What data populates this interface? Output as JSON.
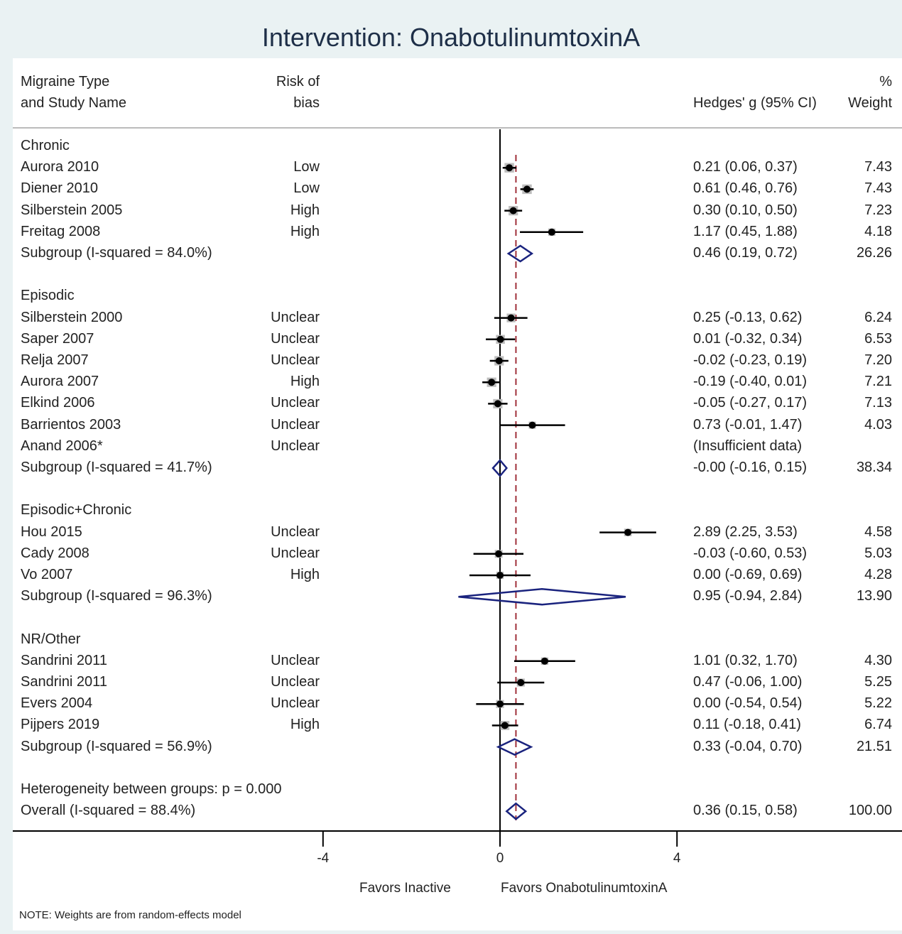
{
  "title": "Intervention: OnabotulinumtoxinA",
  "headers": {
    "study_line1": "Migraine Type",
    "study_line2": "and Study Name",
    "bias_line1": "Risk of",
    "bias_line2": "bias",
    "ci": "Hedges' g (95% CI)",
    "weight_line1": "%",
    "weight_line2": "Weight"
  },
  "axis": {
    "ticks": [
      -4,
      0,
      4
    ],
    "tick_labels": [
      "-4",
      "0",
      "4"
    ],
    "xlim": [
      -11.03,
      9.0
    ]
  },
  "favors_left": "Favors Inactive",
  "favors_right": "Favors OnabotulinumtoxinA",
  "note": "NOTE: Weights are from random-effects model",
  "chart_data": {
    "type": "forest",
    "reference_line": 0,
    "overall_line": 0.36,
    "colors": {
      "diamond": "#1a237e",
      "overall_line": "#a0303a",
      "box": "#bdbdbd",
      "marker": "#000000"
    },
    "rows": [
      {
        "kind": "group",
        "label": "Chronic"
      },
      {
        "kind": "study",
        "label": "Aurora 2010",
        "bias": "Low",
        "g": 0.21,
        "lo": 0.06,
        "hi": 0.37,
        "ci_text": "0.21 (0.06, 0.37)",
        "weight": "7.43"
      },
      {
        "kind": "study",
        "label": "Diener 2010",
        "bias": "Low",
        "g": 0.61,
        "lo": 0.46,
        "hi": 0.76,
        "ci_text": "0.61 (0.46, 0.76)",
        "weight": "7.43"
      },
      {
        "kind": "study",
        "label": "Silberstein 2005",
        "bias": "High",
        "g": 0.3,
        "lo": 0.1,
        "hi": 0.5,
        "ci_text": "0.30 (0.10, 0.50)",
        "weight": "7.23"
      },
      {
        "kind": "study",
        "label": "Freitag 2008",
        "bias": "High",
        "g": 1.17,
        "lo": 0.45,
        "hi": 1.88,
        "ci_text": "1.17 (0.45, 1.88)",
        "weight": "4.18"
      },
      {
        "kind": "subgroup",
        "label": "Subgroup (I-squared = 84.0%)",
        "g": 0.46,
        "lo": 0.19,
        "hi": 0.72,
        "ci_text": "0.46 (0.19, 0.72)",
        "weight": "26.26"
      },
      {
        "kind": "blank"
      },
      {
        "kind": "group",
        "label": "Episodic"
      },
      {
        "kind": "study",
        "label": "Silberstein 2000",
        "bias": "Unclear",
        "g": 0.25,
        "lo": -0.13,
        "hi": 0.62,
        "ci_text": "0.25 (-0.13, 0.62)",
        "weight": "6.24"
      },
      {
        "kind": "study",
        "label": "Saper 2007",
        "bias": "Unclear",
        "g": 0.01,
        "lo": -0.32,
        "hi": 0.34,
        "ci_text": "0.01 (-0.32, 0.34)",
        "weight": "6.53"
      },
      {
        "kind": "study",
        "label": "Relja 2007",
        "bias": "Unclear",
        "g": -0.02,
        "lo": -0.23,
        "hi": 0.19,
        "ci_text": "-0.02 (-0.23, 0.19)",
        "weight": "7.20"
      },
      {
        "kind": "study",
        "label": "Aurora 2007",
        "bias": "High",
        "g": -0.19,
        "lo": -0.4,
        "hi": 0.01,
        "ci_text": "-0.19 (-0.40, 0.01)",
        "weight": "7.21"
      },
      {
        "kind": "study",
        "label": "Elkind 2006",
        "bias": "Unclear",
        "g": -0.05,
        "lo": -0.27,
        "hi": 0.17,
        "ci_text": "-0.05 (-0.27, 0.17)",
        "weight": "7.13"
      },
      {
        "kind": "study",
        "label": "Barrientos 2003",
        "bias": "Unclear",
        "g": 0.73,
        "lo": -0.01,
        "hi": 1.47,
        "ci_text": "0.73 (-0.01, 1.47)",
        "weight": "4.03"
      },
      {
        "kind": "study",
        "label": "Anand 2006*",
        "bias": "Unclear",
        "g": null,
        "lo": null,
        "hi": null,
        "ci_text": "(Insufficient data)",
        "weight": ""
      },
      {
        "kind": "subgroup",
        "label": "Subgroup (I-squared = 41.7%)",
        "g": -0.0,
        "lo": -0.16,
        "hi": 0.15,
        "ci_text": "-0.00 (-0.16, 0.15)",
        "weight": "38.34"
      },
      {
        "kind": "blank"
      },
      {
        "kind": "group",
        "label": "Episodic+Chronic"
      },
      {
        "kind": "study",
        "label": "Hou 2015",
        "bias": "Unclear",
        "g": 2.89,
        "lo": 2.25,
        "hi": 3.53,
        "ci_text": "2.89 (2.25, 3.53)",
        "weight": "4.58"
      },
      {
        "kind": "study",
        "label": "Cady 2008",
        "bias": "Unclear",
        "g": -0.03,
        "lo": -0.6,
        "hi": 0.53,
        "ci_text": "-0.03 (-0.60, 0.53)",
        "weight": "5.03"
      },
      {
        "kind": "study",
        "label": "Vo 2007",
        "bias": "High",
        "g": 0.0,
        "lo": -0.69,
        "hi": 0.69,
        "ci_text": "0.00 (-0.69, 0.69)",
        "weight": "4.28"
      },
      {
        "kind": "subgroup",
        "label": "Subgroup (I-squared = 96.3%)",
        "g": 0.95,
        "lo": -0.94,
        "hi": 2.84,
        "ci_text": "0.95 (-0.94, 2.84)",
        "weight": "13.90"
      },
      {
        "kind": "blank"
      },
      {
        "kind": "group",
        "label": "NR/Other"
      },
      {
        "kind": "study",
        "label": "Sandrini 2011",
        "bias": "Unclear",
        "g": 1.01,
        "lo": 0.32,
        "hi": 1.7,
        "ci_text": "1.01 (0.32, 1.70)",
        "weight": "4.30"
      },
      {
        "kind": "study",
        "label": "Sandrini 2011",
        "bias": "Unclear",
        "g": 0.47,
        "lo": -0.06,
        "hi": 1.0,
        "ci_text": "0.47 (-0.06, 1.00)",
        "weight": "5.25"
      },
      {
        "kind": "study",
        "label": "Evers 2004",
        "bias": "Unclear",
        "g": 0.0,
        "lo": -0.54,
        "hi": 0.54,
        "ci_text": "0.00 (-0.54, 0.54)",
        "weight": "5.22"
      },
      {
        "kind": "study",
        "label": "Pijpers 2019",
        "bias": "High",
        "g": 0.11,
        "lo": -0.18,
        "hi": 0.41,
        "ci_text": "0.11 (-0.18, 0.41)",
        "weight": "6.74"
      },
      {
        "kind": "subgroup",
        "label": "Subgroup (I-squared = 56.9%)",
        "g": 0.33,
        "lo": -0.04,
        "hi": 0.7,
        "ci_text": "0.33 (-0.04, 0.70)",
        "weight": "21.51"
      },
      {
        "kind": "blank"
      },
      {
        "kind": "text",
        "label": "Heterogeneity between groups: p = 0.000"
      },
      {
        "kind": "overall",
        "label": "Overall (I-squared = 88.4%)",
        "g": 0.36,
        "lo": 0.15,
        "hi": 0.58,
        "ci_text": "0.36 (0.15, 0.58)",
        "weight": "100.00"
      }
    ]
  }
}
